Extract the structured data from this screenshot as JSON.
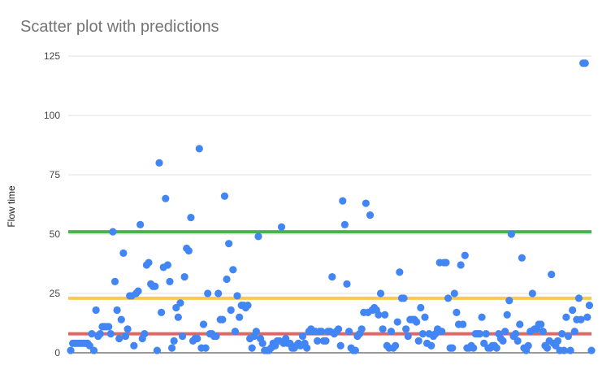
{
  "chart_data": {
    "type": "scatter",
    "title": "Scatter plot with predictions",
    "xlabel": "",
    "ylabel": "Flow time",
    "ylim": [
      0,
      125
    ],
    "yticks": [
      0,
      25,
      50,
      75,
      100,
      125
    ],
    "grid": true,
    "legend": "none",
    "point_color": "#4285f4",
    "series": [
      {
        "values": [
          1,
          4,
          4,
          4,
          4,
          4,
          4,
          4,
          4,
          3,
          8,
          1,
          18,
          7,
          8,
          11,
          11,
          11,
          11,
          8,
          51,
          30,
          18,
          6,
          14,
          42,
          7,
          10,
          24,
          24,
          3,
          25,
          26,
          54,
          6,
          8,
          37,
          38,
          29,
          28,
          28,
          1,
          80,
          17,
          36,
          65,
          37,
          30,
          2,
          5,
          19,
          15,
          21,
          7,
          32,
          44,
          43,
          57,
          5,
          6,
          6,
          86,
          2,
          12,
          2,
          25,
          8,
          8,
          7,
          7,
          25,
          14,
          14,
          66,
          31,
          46,
          18,
          35,
          9,
          24,
          15,
          20,
          20,
          19,
          20,
          6,
          2,
          7,
          9,
          49,
          6,
          4,
          1,
          1,
          1,
          2,
          4,
          3,
          5,
          5,
          53,
          4,
          6,
          4,
          4,
          2,
          2,
          3,
          4,
          3,
          7,
          4,
          2,
          9,
          10,
          9,
          9,
          5,
          9,
          9,
          5,
          5,
          9,
          9,
          32,
          8,
          9,
          10,
          3,
          64,
          54,
          29,
          9,
          2,
          1,
          1,
          7,
          8,
          10,
          17,
          63,
          17,
          58,
          18,
          19,
          18,
          16,
          25,
          10,
          16,
          3,
          2,
          9,
          2,
          3,
          13,
          34,
          23,
          23,
          10,
          7,
          14,
          14,
          14,
          13,
          5,
          19,
          8,
          15,
          4,
          8,
          3,
          7,
          8,
          10,
          38,
          9,
          38,
          38,
          23,
          2,
          2,
          25,
          17,
          12,
          37,
          12,
          41,
          2,
          2,
          3,
          2,
          8,
          8,
          8,
          15,
          4,
          8,
          2,
          2,
          3,
          3,
          2,
          8,
          6,
          5,
          9,
          16,
          22,
          50,
          7,
          8,
          5,
          12,
          40,
          2,
          1,
          3,
          9,
          25,
          10,
          10,
          12,
          12,
          9,
          3,
          2,
          5,
          33,
          4,
          3,
          5,
          1,
          8,
          1,
          15,
          7,
          1,
          18,
          9,
          14,
          23,
          14,
          122,
          122,
          15,
          20,
          1
        ]
      }
    ],
    "reference_lines": [
      {
        "value": 51,
        "color": "#4caf50"
      },
      {
        "value": 23,
        "color": "#f7cb4d"
      },
      {
        "value": 8,
        "color": "#e06666"
      }
    ]
  }
}
